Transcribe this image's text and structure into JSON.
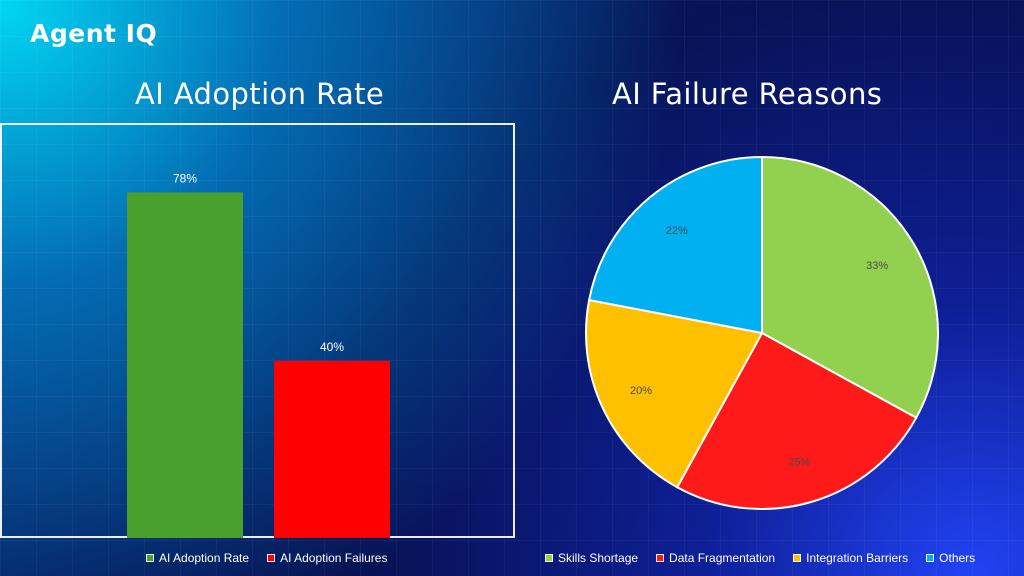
{
  "brand": {
    "logo_text": "Agent IQ"
  },
  "colors": {
    "adoption_rate": "#4aa02c",
    "adoption_failures": "#ff0000",
    "skills_shortage": "#92d050",
    "data_fragmentation": "#ff1a1a",
    "integration_barriers": "#ffc000",
    "others": "#00b0f0"
  },
  "chart_data": [
    {
      "type": "bar",
      "title": "AI Adoption Rate",
      "categories": [
        "AI Adoption Rate",
        "AI Adoption Failures"
      ],
      "values": [
        78,
        40
      ],
      "value_labels": [
        "78%",
        "40%"
      ],
      "ylim": [
        0,
        100
      ],
      "legend": "bottom",
      "grid": false,
      "xlabel": "",
      "ylabel": ""
    },
    {
      "type": "pie",
      "title": "AI Failure Reasons",
      "labels": [
        "Skills Shortage",
        "Data Fragmentation",
        "Integration Barriers",
        "Others"
      ],
      "values": [
        33,
        25,
        20,
        22
      ],
      "value_labels": [
        "33%",
        "25%",
        "20%",
        "22%"
      ],
      "legend": "bottom"
    }
  ]
}
